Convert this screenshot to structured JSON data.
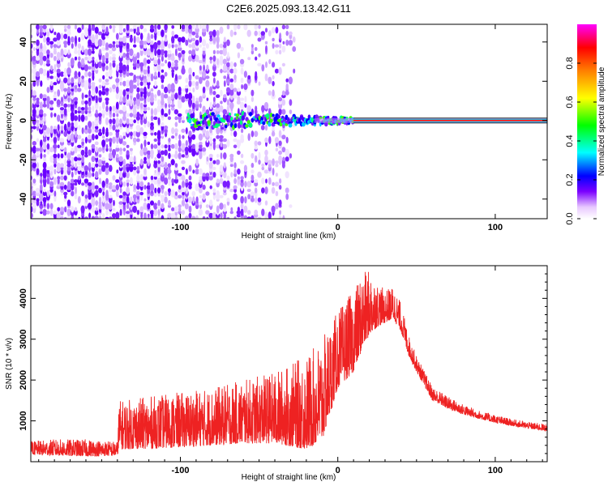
{
  "title": "C2E6.2025.093.13.42.G11",
  "chart_data": [
    {
      "type": "heatmap",
      "xlabel": "Height of straight line (km)",
      "ylabel": "Frequency (Hz)",
      "xlim": [
        -195,
        133
      ],
      "ylim": [
        -50,
        49
      ],
      "x_ticks": [
        -100,
        0,
        100
      ],
      "x_tick_labels": [
        "-100",
        "0",
        "100"
      ],
      "y_ticks": [
        -40,
        -20,
        0,
        20,
        40
      ],
      "y_tick_labels": [
        "-40",
        "-20",
        "0",
        "20",
        "40"
      ],
      "signal_line": {
        "frequency": 0,
        "x_start": -95,
        "x_end": 133,
        "strong_from": 10
      },
      "noise_region": {
        "x_start": -195,
        "x_end": -35
      },
      "colorbar": {
        "label": "Normalized spectral amplitude",
        "range": [
          0,
          1
        ],
        "ticks": [
          0.0,
          0.2,
          0.4,
          0.6,
          0.8
        ],
        "tick_labels": [
          "0.0",
          "0.2",
          "0.4",
          "0.6",
          "0.8"
        ],
        "colormap": [
          "#ffffff",
          "#7b00ff",
          "#0000ff",
          "#00ffff",
          "#00ff00",
          "#ffff00",
          "#ff8000",
          "#ff0000",
          "#ff00ff"
        ]
      },
      "grid": false
    },
    {
      "type": "line",
      "xlabel": "Height of straight line (km)",
      "ylabel": "SNR (10 * v/v)",
      "xlim": [
        -195,
        133
      ],
      "ylim": [
        0,
        4800
      ],
      "x_ticks": [
        -100,
        0,
        100
      ],
      "x_tick_labels": [
        "-100",
        "0",
        "100"
      ],
      "y_ticks": [
        1000,
        2000,
        3000,
        4000
      ],
      "y_tick_labels": [
        "1000",
        "2000",
        "3000",
        "4000"
      ],
      "color": "#ee2222",
      "series": [
        {
          "x": [
            -195,
            -180,
            -160,
            -140,
            -139,
            -120,
            -100,
            -80,
            -60,
            -40,
            -20,
            -10,
            0,
            10,
            15,
            20,
            25,
            30,
            35,
            40,
            45,
            50,
            60,
            70,
            80,
            90,
            100,
            110,
            120,
            133
          ],
          "low": [
            180,
            150,
            130,
            150,
            300,
            320,
            350,
            400,
            450,
            450,
            300,
            500,
            1800,
            2200,
            2700,
            3100,
            3300,
            3400,
            3500,
            3200,
            2600,
            2200,
            1500,
            1300,
            1150,
            1050,
            950,
            880,
            820,
            750
          ],
          "high": [
            500,
            550,
            550,
            500,
            1500,
            1600,
            1700,
            1800,
            2000,
            2200,
            2600,
            3000,
            3700,
            4200,
            4600,
            4700,
            4400,
            4200,
            4300,
            3900,
            3100,
            2600,
            1850,
            1600,
            1400,
            1250,
            1150,
            1050,
            980,
            920
          ]
        }
      ],
      "grid": false
    }
  ]
}
